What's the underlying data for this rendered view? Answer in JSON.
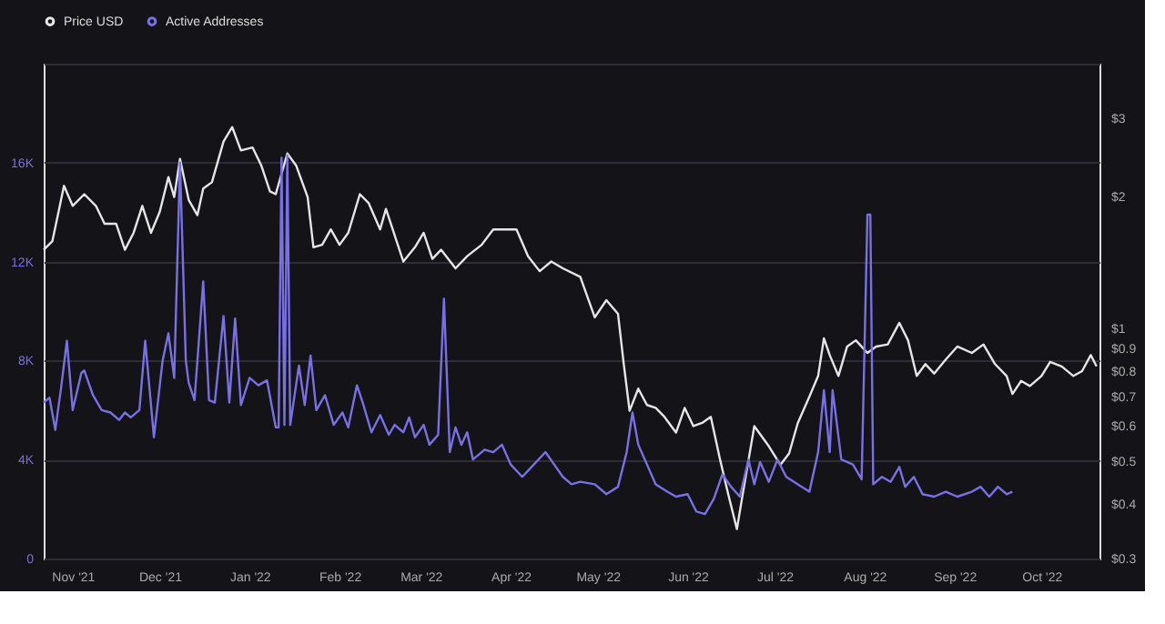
{
  "chart_data": {
    "type": "line",
    "legend": "top",
    "grid": "y",
    "log": "y2",
    "xlim": [
      "2021-10-22",
      "2022-10-21"
    ],
    "xticks": [
      {
        "value": "2021-11-01",
        "label": "Nov '21"
      },
      {
        "value": "2021-12-01",
        "label": "Dec '21"
      },
      {
        "value": "2022-01-01",
        "label": "Jan '22"
      },
      {
        "value": "2022-02-01",
        "label": "Feb '22"
      },
      {
        "value": "2022-03-01",
        "label": "Mar '22"
      },
      {
        "value": "2022-04-01",
        "label": "Apr '22"
      },
      {
        "value": "2022-05-01",
        "label": "May '22"
      },
      {
        "value": "2022-06-01",
        "label": "Jun '22"
      },
      {
        "value": "2022-07-01",
        "label": "Jul '22"
      },
      {
        "value": "2022-08-01",
        "label": "Aug '22"
      },
      {
        "value": "2022-09-01",
        "label": "Sep '22"
      },
      {
        "value": "2022-10-01",
        "label": "Oct '22"
      }
    ],
    "ylim": [
      0,
      20000
    ],
    "yticks": [
      0,
      {
        "value": 4000,
        "label": "4K"
      },
      {
        "value": 8000,
        "label": "8K"
      },
      {
        "value": 12000,
        "label": "12K"
      },
      {
        "value": 16000,
        "label": "16K"
      },
      {
        "value": 20000,
        "label": null
      }
    ],
    "y2lim": [
      0.3,
      4
    ],
    "y2ticks": [
      {
        "value": 0.3,
        "label": "$0.3"
      },
      {
        "value": 0.4,
        "label": "$0.4"
      },
      {
        "value": 0.5,
        "label": "$0.5"
      },
      {
        "value": 0.6,
        "label": "$0.6"
      },
      {
        "value": 0.7,
        "label": "$0.7"
      },
      {
        "value": 0.8,
        "label": "$0.8"
      },
      {
        "value": 0.9,
        "label": "$0.9"
      },
      {
        "value": 1,
        "label": "$1"
      },
      {
        "value": 2,
        "label": "$2"
      },
      {
        "value": 3,
        "label": "$3"
      }
    ],
    "series": [
      {
        "name": "Price USD",
        "color": "#e6e6e6",
        "axis": "y2",
        "x": [
          "2021-10-22",
          "2021-10-25",
          "2021-10-29",
          "2021-11-01",
          "2021-11-05",
          "2021-11-09",
          "2021-11-12",
          "2021-11-16",
          "2021-11-19",
          "2021-11-22",
          "2021-11-25",
          "2021-11-28",
          "2021-12-01",
          "2021-12-04",
          "2021-12-06",
          "2021-12-08",
          "2021-12-11",
          "2021-12-14",
          "2021-12-16",
          "2021-12-19",
          "2021-12-23",
          "2021-12-26",
          "2021-12-29",
          "2022-01-02",
          "2022-01-05",
          "2022-01-08",
          "2022-01-10",
          "2022-01-14",
          "2022-01-17",
          "2022-01-21",
          "2022-01-23",
          "2022-01-26",
          "2022-01-29",
          "2022-02-01",
          "2022-02-04",
          "2022-02-08",
          "2022-02-11",
          "2022-02-15",
          "2022-02-17",
          "2022-02-20",
          "2022-02-23",
          "2022-02-27",
          "2022-03-02",
          "2022-03-05",
          "2022-03-08",
          "2022-03-13",
          "2022-03-17",
          "2022-03-22",
          "2022-03-26",
          "2022-03-30",
          "2022-04-03",
          "2022-04-07",
          "2022-04-11",
          "2022-04-15",
          "2022-04-19",
          "2022-04-25",
          "2022-04-30",
          "2022-05-04",
          "2022-05-08",
          "2022-05-10",
          "2022-05-12",
          "2022-05-15",
          "2022-05-18",
          "2022-05-21",
          "2022-05-24",
          "2022-05-28",
          "2022-05-31",
          "2022-06-03",
          "2022-06-06",
          "2022-06-09",
          "2022-06-12",
          "2022-06-15",
          "2022-06-18",
          "2022-06-20",
          "2022-06-24",
          "2022-06-29",
          "2022-07-03",
          "2022-07-06",
          "2022-07-09",
          "2022-07-13",
          "2022-07-16",
          "2022-07-18",
          "2022-07-20",
          "2022-07-23",
          "2022-07-26",
          "2022-07-29",
          "2022-08-02",
          "2022-08-05",
          "2022-08-09",
          "2022-08-13",
          "2022-08-16",
          "2022-08-19",
          "2022-08-22",
          "2022-08-25",
          "2022-08-29",
          "2022-09-02",
          "2022-09-07",
          "2022-09-11",
          "2022-09-15",
          "2022-09-19",
          "2022-09-21",
          "2022-09-24",
          "2022-09-27",
          "2022-10-01",
          "2022-10-04",
          "2022-10-08",
          "2022-10-12",
          "2022-10-15",
          "2022-10-18",
          "2022-10-20"
        ],
        "values": [
          1.51,
          1.58,
          2.11,
          1.9,
          2.02,
          1.9,
          1.73,
          1.73,
          1.51,
          1.65,
          1.9,
          1.65,
          1.84,
          2.21,
          1.99,
          2.43,
          1.96,
          1.81,
          2.08,
          2.15,
          2.66,
          2.87,
          2.54,
          2.58,
          2.35,
          2.05,
          2.02,
          2.5,
          2.35,
          1.99,
          1.53,
          1.55,
          1.68,
          1.55,
          1.65,
          2.02,
          1.93,
          1.68,
          1.87,
          1.63,
          1.42,
          1.53,
          1.65,
          1.44,
          1.51,
          1.37,
          1.46,
          1.55,
          1.68,
          1.68,
          1.68,
          1.46,
          1.35,
          1.42,
          1.37,
          1.31,
          1.06,
          1.16,
          1.08,
          0.83,
          0.65,
          0.73,
          0.67,
          0.66,
          0.63,
          0.58,
          0.66,
          0.6,
          0.61,
          0.63,
          0.51,
          0.42,
          0.35,
          0.42,
          0.6,
          0.54,
          0.49,
          0.52,
          0.61,
          0.7,
          0.78,
          0.95,
          0.87,
          0.78,
          0.91,
          0.94,
          0.88,
          0.91,
          0.92,
          1.03,
          0.94,
          0.78,
          0.83,
          0.79,
          0.85,
          0.91,
          0.88,
          0.92,
          0.83,
          0.78,
          0.71,
          0.76,
          0.74,
          0.78,
          0.84,
          0.82,
          0.78,
          0.8,
          0.87,
          0.82
        ]
      },
      {
        "name": "Active Addresses",
        "color": "#7a70e6",
        "x": [
          "2021-10-22",
          "2021-10-24",
          "2021-10-26",
          "2021-10-28",
          "2021-10-30",
          "2021-11-01",
          "2021-11-04",
          "2021-11-05",
          "2021-11-08",
          "2021-11-11",
          "2021-11-14",
          "2021-11-17",
          "2021-11-19",
          "2021-11-21",
          "2021-11-24",
          "2021-11-26",
          "2021-11-29",
          "2021-12-02",
          "2021-12-04",
          "2021-12-06",
          "2021-12-08",
          "2021-12-10",
          "2021-12-11",
          "2021-12-13",
          "2021-12-16",
          "2021-12-18",
          "2021-12-20",
          "2021-12-23",
          "2021-12-25",
          "2021-12-27",
          "2021-12-29",
          "2022-01-01",
          "2022-01-04",
          "2022-01-07",
          "2022-01-10",
          "2022-01-11",
          "2022-01-12",
          "2022-01-13",
          "2022-01-14",
          "2022-01-15",
          "2022-01-18",
          "2022-01-20",
          "2022-01-22",
          "2022-01-24",
          "2022-01-27",
          "2022-01-30",
          "2022-02-02",
          "2022-02-04",
          "2022-02-07",
          "2022-02-09",
          "2022-02-12",
          "2022-02-15",
          "2022-02-18",
          "2022-02-20",
          "2022-02-23",
          "2022-02-25",
          "2022-02-27",
          "2022-03-02",
          "2022-03-04",
          "2022-03-07",
          "2022-03-09",
          "2022-03-11",
          "2022-03-13",
          "2022-03-15",
          "2022-03-17",
          "2022-03-19",
          "2022-03-23",
          "2022-03-26",
          "2022-03-29",
          "2022-04-01",
          "2022-04-05",
          "2022-04-09",
          "2022-04-13",
          "2022-04-16",
          "2022-04-19",
          "2022-04-22",
          "2022-04-25",
          "2022-04-30",
          "2022-05-04",
          "2022-05-08",
          "2022-05-11",
          "2022-05-13",
          "2022-05-15",
          "2022-05-18",
          "2022-05-21",
          "2022-05-25",
          "2022-05-28",
          "2022-06-01",
          "2022-06-04",
          "2022-06-07",
          "2022-06-10",
          "2022-06-13",
          "2022-06-16",
          "2022-06-19",
          "2022-06-22",
          "2022-06-24",
          "2022-06-26",
          "2022-06-29",
          "2022-07-02",
          "2022-07-05",
          "2022-07-09",
          "2022-07-13",
          "2022-07-16",
          "2022-07-18",
          "2022-07-20",
          "2022-07-21",
          "2022-07-24",
          "2022-07-28",
          "2022-07-31",
          "2022-08-02",
          "2022-08-03",
          "2022-08-04",
          "2022-08-07",
          "2022-08-10",
          "2022-08-13",
          "2022-08-15",
          "2022-08-18",
          "2022-08-21",
          "2022-08-25",
          "2022-08-29",
          "2022-09-02",
          "2022-09-07",
          "2022-09-10",
          "2022-09-13",
          "2022-09-16",
          "2022-09-19",
          "2022-09-21"
        ],
        "values": [
          6300,
          6500,
          5200,
          6900,
          8800,
          6000,
          7500,
          7600,
          6600,
          6000,
          5900,
          5600,
          5900,
          5700,
          6000,
          8800,
          4900,
          8000,
          9100,
          7300,
          16000,
          8000,
          7100,
          6400,
          11200,
          6400,
          6300,
          9800,
          6300,
          9700,
          6200,
          7300,
          7000,
          7200,
          5300,
          5300,
          16200,
          5400,
          16300,
          5400,
          7800,
          6200,
          8200,
          6000,
          6600,
          5400,
          5900,
          5300,
          7000,
          6300,
          5100,
          5800,
          5000,
          5400,
          5100,
          5700,
          4900,
          5400,
          4600,
          5000,
          10500,
          4300,
          5300,
          4600,
          5100,
          4000,
          4400,
          4300,
          4600,
          3800,
          3300,
          3800,
          4300,
          3800,
          3300,
          3000,
          3100,
          3000,
          2600,
          2900,
          4300,
          5900,
          4600,
          3800,
          3000,
          2700,
          2500,
          2600,
          1900,
          1800,
          2400,
          3400,
          2900,
          2500,
          4000,
          3000,
          3900,
          3100,
          4000,
          3300,
          3000,
          2700,
          4300,
          6800,
          4300,
          6800,
          4000,
          3800,
          3200,
          13900,
          13900,
          3000,
          3300,
          3100,
          3700,
          2900,
          3300,
          2600,
          2500,
          2700,
          2500,
          2700,
          2900,
          2500,
          2900,
          2600,
          2700
        ]
      }
    ]
  }
}
